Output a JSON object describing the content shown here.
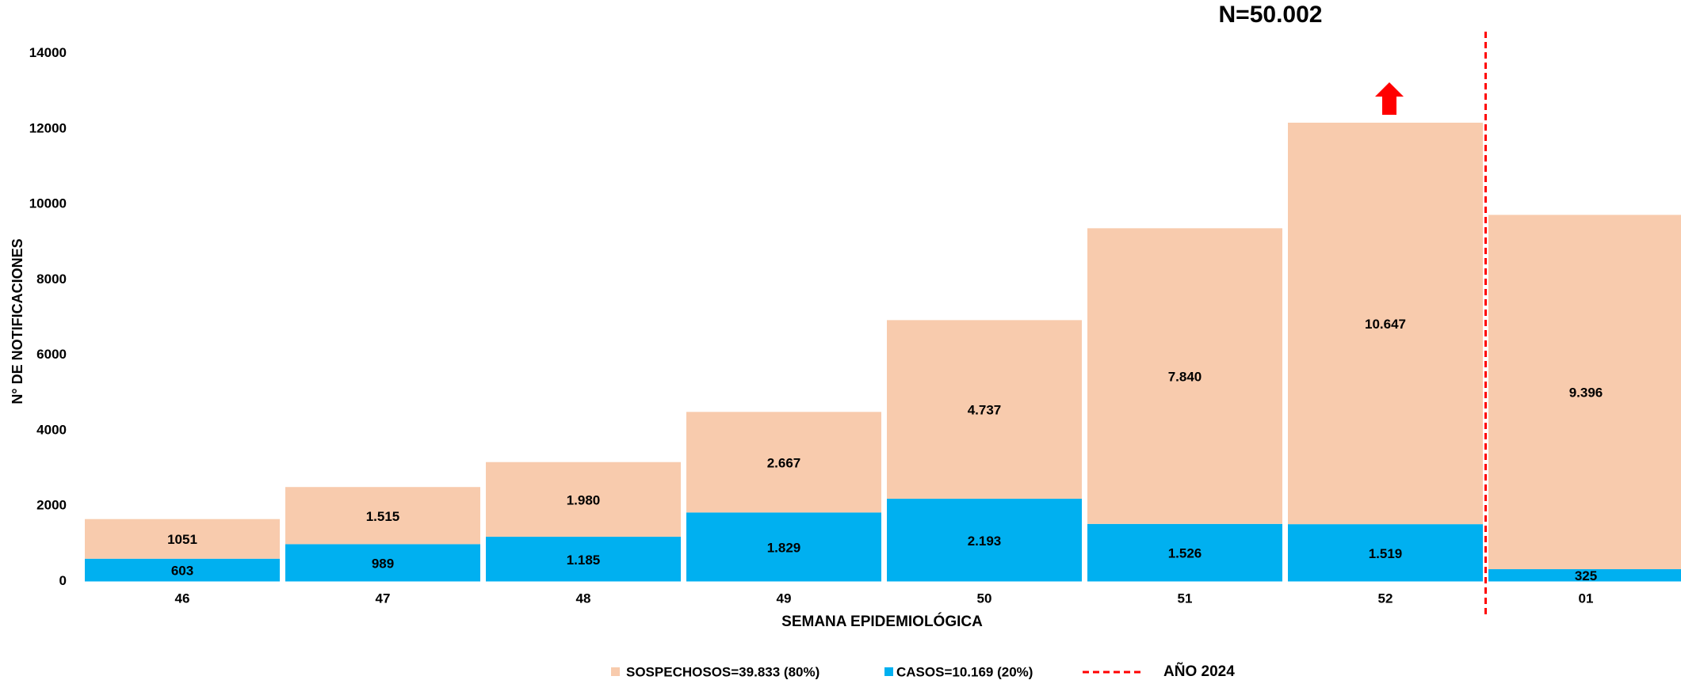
{
  "chart_data": {
    "type": "stacked_bar",
    "title": "N=50.002",
    "x_label": "SEMANA EPIDEMIOLÓGICA",
    "y_label": "N° DE NOTIFICACIONES",
    "categories": [
      "46",
      "47",
      "48",
      "49",
      "50",
      "51",
      "52",
      "01"
    ],
    "series": [
      {
        "name": "CASOS=10.169 (20%)",
        "color": "#00b0f0",
        "values": [
          603,
          989,
          1185,
          1829,
          2193,
          1526,
          1519,
          325
        ],
        "value_labels": [
          "603",
          "989",
          "1.185",
          "1.829",
          "2.193",
          "1.526",
          "1.519",
          "325"
        ]
      },
      {
        "name": "SOSPECHOSOS=39.833 (80%)",
        "color": "#f8cbad",
        "values": [
          1051,
          1515,
          1980,
          2667,
          4737,
          7840,
          10647,
          9396
        ],
        "value_labels": [
          "1051",
          "1.515",
          "1.980",
          "2.667",
          "4.737",
          "7.840",
          "10.647",
          "9.396"
        ]
      }
    ],
    "ylim": [
      0,
      14000
    ],
    "yticks": [
      0,
      2000,
      4000,
      6000,
      8000,
      10000,
      12000,
      14000
    ],
    "grid": false,
    "reference_line": {
      "label": "AÑO 2024",
      "color": "#ff0000"
    }
  }
}
